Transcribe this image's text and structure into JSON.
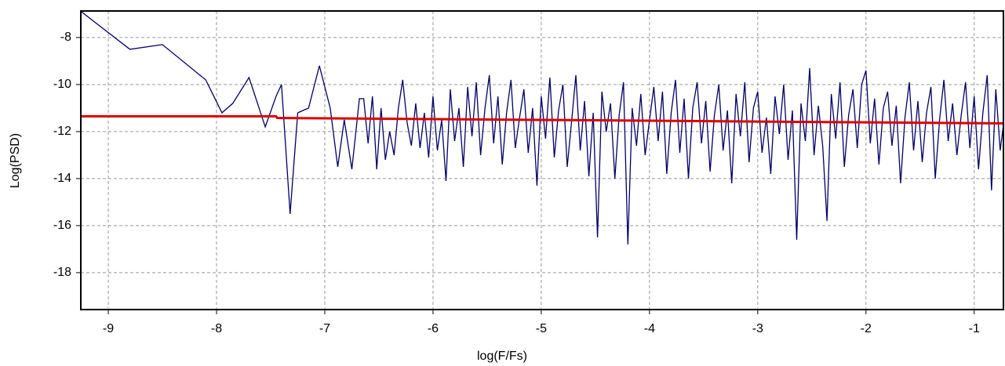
{
  "chart_data": {
    "type": "line",
    "x_label": "log(F/Fs)",
    "y_label": "Log(PSD)",
    "xlim": [
      -9.254,
      -0.73
    ],
    "ylim": [
      -19.57,
      -6.87
    ],
    "xticks": [
      -9,
      -8,
      -7,
      -6,
      -5,
      -4,
      -3,
      -2,
      -1
    ],
    "yticks": [
      -8,
      -10,
      -12,
      -14,
      -16,
      -18
    ],
    "grid": true,
    "series": [
      {
        "color": "#000066",
        "x": [
          -9.25,
          -8.8,
          -8.5,
          -8.1,
          -7.95,
          -7.85,
          -7.7,
          -7.55,
          -7.45,
          -7.4,
          -7.32,
          -7.25,
          -7.15,
          -7.05,
          -6.95,
          -6.88,
          -6.82,
          -6.75,
          -6.68,
          -6.64,
          -6.6,
          -6.56,
          -6.52,
          -6.48,
          -6.44,
          -6.4,
          -6.36,
          -6.32,
          -6.28,
          -6.24,
          -6.2,
          -6.16,
          -6.12,
          -6.08,
          -6.04,
          -6.0,
          -5.96,
          -5.92,
          -5.88,
          -5.84,
          -5.8,
          -5.76,
          -5.72,
          -5.68,
          -5.64,
          -5.6,
          -5.56,
          -5.52,
          -5.48,
          -5.44,
          -5.4,
          -5.36,
          -5.32,
          -5.28,
          -5.24,
          -5.2,
          -5.16,
          -5.12,
          -5.08,
          -5.04,
          -5.0,
          -4.96,
          -4.92,
          -4.88,
          -4.84,
          -4.8,
          -4.76,
          -4.72,
          -4.68,
          -4.64,
          -4.6,
          -4.56,
          -4.52,
          -4.48,
          -4.44,
          -4.4,
          -4.36,
          -4.32,
          -4.28,
          -4.24,
          -4.2,
          -4.16,
          -4.12,
          -4.08,
          -4.04,
          -4.0,
          -3.96,
          -3.92,
          -3.88,
          -3.84,
          -3.8,
          -3.76,
          -3.72,
          -3.68,
          -3.64,
          -3.6,
          -3.56,
          -3.52,
          -3.48,
          -3.44,
          -3.4,
          -3.36,
          -3.32,
          -3.28,
          -3.24,
          -3.2,
          -3.16,
          -3.12,
          -3.08,
          -3.04,
          -3.0,
          -2.96,
          -2.92,
          -2.88,
          -2.84,
          -2.8,
          -2.76,
          -2.72,
          -2.68,
          -2.64,
          -2.6,
          -2.56,
          -2.52,
          -2.48,
          -2.44,
          -2.4,
          -2.36,
          -2.32,
          -2.28,
          -2.24,
          -2.2,
          -2.16,
          -2.12,
          -2.08,
          -2.04,
          -2.0,
          -1.96,
          -1.92,
          -1.88,
          -1.84,
          -1.8,
          -1.76,
          -1.72,
          -1.68,
          -1.64,
          -1.6,
          -1.56,
          -1.52,
          -1.48,
          -1.44,
          -1.4,
          -1.36,
          -1.32,
          -1.28,
          -1.24,
          -1.2,
          -1.16,
          -1.12,
          -1.08,
          -1.04,
          -1.0,
          -0.96,
          -0.92,
          -0.88,
          -0.84,
          -0.8,
          -0.76,
          -0.73
        ],
        "values": [
          -6.9,
          -8.5,
          -8.3,
          -9.8,
          -11.2,
          -10.8,
          -9.7,
          -11.8,
          -10.5,
          -10.0,
          -15.5,
          -11.2,
          -11.0,
          -9.2,
          -11.0,
          -13.5,
          -11.5,
          -13.6,
          -10.6,
          -10.6,
          -12.5,
          -10.5,
          -13.6,
          -11.0,
          -13.2,
          -12.0,
          -13.0,
          -11.0,
          -9.8,
          -11.6,
          -12.6,
          -10.8,
          -12.7,
          -11.2,
          -13.1,
          -10.5,
          -12.8,
          -11.5,
          -14.1,
          -10.2,
          -12.4,
          -11.0,
          -13.5,
          -10.1,
          -12.2,
          -9.9,
          -13.0,
          -11.0,
          -9.6,
          -12.5,
          -10.5,
          -13.4,
          -11.2,
          -9.8,
          -12.7,
          -11.4,
          -10.2,
          -12.9,
          -11.0,
          -14.3,
          -10.5,
          -12.3,
          -9.7,
          -13.1,
          -11.1,
          -10.0,
          -13.5,
          -11.6,
          -9.6,
          -12.8,
          -10.7,
          -13.9,
          -11.2,
          -16.5,
          -10.3,
          -12.0,
          -10.8,
          -14.0,
          -11.3,
          -9.9,
          -16.8,
          -11.0,
          -12.6,
          -10.4,
          -13.0,
          -11.5,
          -10.1,
          -12.4,
          -10.3,
          -13.8,
          -11.2,
          -9.8,
          -12.9,
          -10.6,
          -14.0,
          -11.0,
          -9.9,
          -12.5,
          -10.7,
          -13.7,
          -11.3,
          -10.0,
          -12.8,
          -11.1,
          -14.2,
          -10.4,
          -12.2,
          -9.9,
          -13.3,
          -11.0,
          -10.3,
          -12.9,
          -11.4,
          -13.8,
          -10.5,
          -12.1,
          -10.0,
          -13.2,
          -11.1,
          -16.6,
          -10.8,
          -12.4,
          -9.3,
          -13.0,
          -10.9,
          -12.6,
          -15.8,
          -10.4,
          -12.3,
          -9.9,
          -13.5,
          -11.3,
          -10.2,
          -12.7,
          -10.0,
          -9.4,
          -12.5,
          -10.6,
          -13.4,
          -11.0,
          -10.3,
          -12.6,
          -10.9,
          -14.2,
          -11.4,
          -9.9,
          -12.8,
          -10.7,
          -13.3,
          -11.2,
          -10.1,
          -14.0,
          -11.5,
          -9.8,
          -12.4,
          -10.8,
          -13.0,
          -11.3,
          -9.9,
          -12.7,
          -10.5,
          -13.6,
          -11.2,
          -9.6,
          -14.5,
          -10.2,
          -12.8,
          -11.7
        ]
      },
      {
        "color": "#dd0000",
        "x": [
          -9.25,
          -7.45,
          -7.44,
          -0.73
        ],
        "values": [
          -11.35,
          -11.35,
          -11.42,
          -11.65
        ]
      }
    ]
  }
}
